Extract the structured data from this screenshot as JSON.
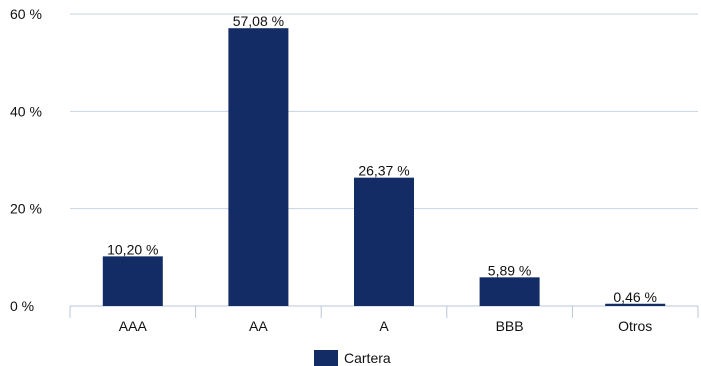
{
  "chart_data": {
    "type": "bar",
    "categories": [
      "AAA",
      "AA",
      "A",
      "BBB",
      "Otros"
    ],
    "series": [
      {
        "name": "Cartera",
        "values": [
          10.2,
          57.08,
          26.37,
          5.89,
          0.46
        ],
        "labels": [
          "10,20 %",
          "57,08 %",
          "26,37 %",
          "5,89 %",
          "0,46 %"
        ],
        "color": "#132c65"
      }
    ],
    "ylim": [
      0,
      60
    ],
    "yticks": [
      0,
      20,
      40,
      60
    ],
    "ytick_labels": [
      "0 %",
      "20 %",
      "40 %",
      "60 %"
    ],
    "grid": true,
    "legend_position": "bottom-center",
    "title": "",
    "xlabel": "",
    "ylabel": ""
  }
}
